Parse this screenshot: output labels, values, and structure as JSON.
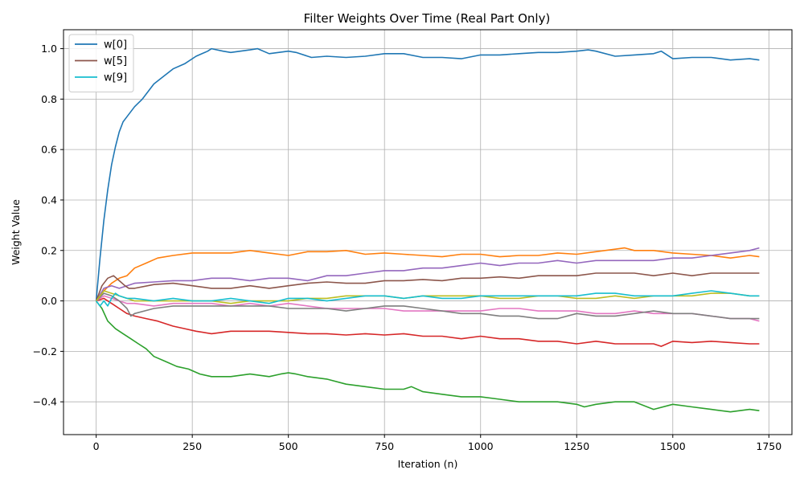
{
  "chart_data": {
    "type": "line",
    "title": "Filter Weights Over Time (Real Part Only)",
    "xlabel": "Iteration (n)",
    "ylabel": "Weight Value",
    "xlim": [
      -85,
      1810
    ],
    "ylim": [
      -0.53,
      1.075
    ],
    "xticks": [
      0,
      250,
      500,
      750,
      1000,
      1250,
      1500,
      1750
    ],
    "yticks": [
      -0.4,
      -0.2,
      0.0,
      0.2,
      0.4,
      0.6,
      0.8,
      1.0
    ],
    "xtick_labels": [
      "0",
      "250",
      "500",
      "750",
      "1000",
      "1250",
      "1500",
      "1750"
    ],
    "ytick_labels": [
      "−0.4",
      "−0.2",
      "0.0",
      "0.2",
      "0.4",
      "0.6",
      "0.8",
      "1.0"
    ],
    "grid": true,
    "legend": {
      "placement": "top-left",
      "entries": [
        "w[0]",
        "w[5]",
        "w[9]"
      ]
    },
    "series": [
      {
        "name": "w[0]",
        "color": "#1f77b4",
        "x": [
          0,
          10,
          20,
          30,
          40,
          50,
          60,
          70,
          80,
          100,
          120,
          150,
          175,
          200,
          230,
          260,
          290,
          300,
          330,
          350,
          400,
          420,
          450,
          500,
          520,
          560,
          600,
          650,
          700,
          750,
          800,
          850,
          900,
          950,
          1000,
          1050,
          1100,
          1150,
          1200,
          1250,
          1280,
          1300,
          1350,
          1400,
          1450,
          1470,
          1500,
          1550,
          1600,
          1650,
          1700,
          1725
        ],
        "y": [
          0.0,
          0.17,
          0.32,
          0.44,
          0.54,
          0.61,
          0.67,
          0.71,
          0.73,
          0.77,
          0.8,
          0.86,
          0.89,
          0.92,
          0.94,
          0.97,
          0.99,
          1.0,
          0.99,
          0.985,
          0.995,
          1.0,
          0.98,
          0.99,
          0.985,
          0.965,
          0.97,
          0.965,
          0.97,
          0.98,
          0.98,
          0.965,
          0.965,
          0.96,
          0.975,
          0.975,
          0.98,
          0.985,
          0.985,
          0.99,
          0.995,
          0.99,
          0.97,
          0.975,
          0.98,
          0.99,
          0.96,
          0.965,
          0.965,
          0.955,
          0.96,
          0.955
        ]
      },
      {
        "name": "",
        "color": "#ff7f0e",
        "x": [
          0,
          20,
          40,
          60,
          80,
          100,
          130,
          160,
          200,
          250,
          300,
          350,
          400,
          450,
          500,
          550,
          600,
          650,
          700,
          750,
          800,
          850,
          900,
          950,
          1000,
          1050,
          1100,
          1150,
          1200,
          1250,
          1300,
          1350,
          1375,
          1400,
          1450,
          1500,
          1550,
          1600,
          1650,
          1700,
          1725
        ],
        "y": [
          0.0,
          0.04,
          0.07,
          0.09,
          0.1,
          0.13,
          0.15,
          0.17,
          0.18,
          0.19,
          0.19,
          0.19,
          0.2,
          0.19,
          0.18,
          0.195,
          0.195,
          0.2,
          0.185,
          0.19,
          0.185,
          0.18,
          0.175,
          0.185,
          0.185,
          0.175,
          0.18,
          0.18,
          0.19,
          0.185,
          0.195,
          0.205,
          0.21,
          0.2,
          0.2,
          0.19,
          0.185,
          0.18,
          0.17,
          0.18,
          0.175
        ]
      },
      {
        "name": "",
        "color": "#2ca02c",
        "x": [
          0,
          15,
          30,
          50,
          70,
          90,
          110,
          130,
          150,
          180,
          210,
          240,
          270,
          300,
          350,
          400,
          450,
          480,
          500,
          520,
          550,
          600,
          650,
          700,
          750,
          800,
          820,
          850,
          900,
          950,
          1000,
          1050,
          1100,
          1150,
          1200,
          1250,
          1270,
          1300,
          1350,
          1400,
          1450,
          1500,
          1550,
          1600,
          1650,
          1700,
          1725
        ],
        "y": [
          0.0,
          -0.03,
          -0.08,
          -0.11,
          -0.13,
          -0.15,
          -0.17,
          -0.19,
          -0.22,
          -0.24,
          -0.26,
          -0.27,
          -0.29,
          -0.3,
          -0.3,
          -0.29,
          -0.3,
          -0.29,
          -0.285,
          -0.29,
          -0.3,
          -0.31,
          -0.33,
          -0.34,
          -0.35,
          -0.35,
          -0.34,
          -0.36,
          -0.37,
          -0.38,
          -0.38,
          -0.39,
          -0.4,
          -0.4,
          -0.4,
          -0.41,
          -0.42,
          -0.41,
          -0.4,
          -0.4,
          -0.43,
          -0.41,
          -0.42,
          -0.43,
          -0.44,
          -0.43,
          -0.435
        ]
      },
      {
        "name": "",
        "color": "#d62728",
        "x": [
          0,
          20,
          40,
          60,
          80,
          100,
          130,
          160,
          200,
          230,
          260,
          300,
          350,
          400,
          450,
          500,
          550,
          600,
          650,
          700,
          750,
          800,
          850,
          900,
          950,
          1000,
          1050,
          1100,
          1150,
          1200,
          1250,
          1300,
          1350,
          1400,
          1450,
          1470,
          1500,
          1550,
          1600,
          1650,
          1700,
          1725
        ],
        "y": [
          0.0,
          0.01,
          -0.01,
          -0.03,
          -0.05,
          -0.06,
          -0.07,
          -0.08,
          -0.1,
          -0.11,
          -0.12,
          -0.13,
          -0.12,
          -0.12,
          -0.12,
          -0.125,
          -0.13,
          -0.13,
          -0.135,
          -0.13,
          -0.135,
          -0.13,
          -0.14,
          -0.14,
          -0.15,
          -0.14,
          -0.15,
          -0.15,
          -0.16,
          -0.16,
          -0.17,
          -0.16,
          -0.17,
          -0.17,
          -0.17,
          -0.18,
          -0.16,
          -0.165,
          -0.16,
          -0.165,
          -0.17,
          -0.17
        ]
      },
      {
        "name": "",
        "color": "#9467bd",
        "x": [
          0,
          20,
          40,
          60,
          80,
          100,
          150,
          200,
          250,
          300,
          350,
          400,
          450,
          500,
          550,
          600,
          650,
          700,
          750,
          800,
          850,
          900,
          950,
          1000,
          1050,
          1100,
          1150,
          1200,
          1250,
          1300,
          1350,
          1400,
          1450,
          1500,
          1550,
          1600,
          1650,
          1700,
          1725
        ],
        "y": [
          0.0,
          0.05,
          0.06,
          0.05,
          0.06,
          0.07,
          0.075,
          0.08,
          0.08,
          0.09,
          0.09,
          0.08,
          0.09,
          0.09,
          0.08,
          0.1,
          0.1,
          0.11,
          0.12,
          0.12,
          0.13,
          0.13,
          0.14,
          0.15,
          0.14,
          0.15,
          0.15,
          0.16,
          0.15,
          0.16,
          0.16,
          0.16,
          0.16,
          0.17,
          0.17,
          0.18,
          0.19,
          0.2,
          0.21
        ]
      },
      {
        "name": "w[5]",
        "color": "#8c564b",
        "x": [
          0,
          15,
          30,
          45,
          60,
          75,
          85,
          100,
          150,
          200,
          250,
          300,
          350,
          400,
          450,
          500,
          550,
          600,
          650,
          700,
          750,
          800,
          850,
          900,
          950,
          1000,
          1050,
          1100,
          1150,
          1200,
          1250,
          1300,
          1350,
          1400,
          1450,
          1500,
          1550,
          1600,
          1650,
          1700,
          1725
        ],
        "y": [
          0.0,
          0.06,
          0.09,
          0.1,
          0.08,
          0.06,
          0.05,
          0.05,
          0.065,
          0.07,
          0.06,
          0.05,
          0.05,
          0.06,
          0.05,
          0.06,
          0.07,
          0.075,
          0.07,
          0.07,
          0.08,
          0.08,
          0.085,
          0.08,
          0.09,
          0.09,
          0.095,
          0.09,
          0.1,
          0.1,
          0.1,
          0.11,
          0.11,
          0.11,
          0.1,
          0.11,
          0.1,
          0.11,
          0.11,
          0.11,
          0.11
        ]
      },
      {
        "name": "",
        "color": "#e377c2",
        "x": [
          0,
          20,
          40,
          60,
          80,
          100,
          150,
          200,
          250,
          300,
          350,
          400,
          450,
          500,
          550,
          600,
          650,
          700,
          750,
          800,
          850,
          900,
          950,
          1000,
          1050,
          1100,
          1150,
          1200,
          1250,
          1300,
          1350,
          1400,
          1450,
          1500,
          1550,
          1600,
          1650,
          1700,
          1725
        ],
        "y": [
          0.0,
          0.02,
          0.01,
          0.0,
          -0.01,
          -0.01,
          -0.02,
          -0.01,
          -0.01,
          -0.01,
          -0.02,
          -0.01,
          -0.02,
          -0.01,
          -0.02,
          -0.03,
          -0.03,
          -0.03,
          -0.03,
          -0.04,
          -0.04,
          -0.04,
          -0.04,
          -0.04,
          -0.03,
          -0.03,
          -0.04,
          -0.04,
          -0.04,
          -0.05,
          -0.05,
          -0.04,
          -0.05,
          -0.05,
          -0.05,
          -0.06,
          -0.07,
          -0.07,
          -0.08
        ]
      },
      {
        "name": "",
        "color": "#7f7f7f",
        "x": [
          0,
          20,
          40,
          60,
          80,
          90,
          100,
          150,
          200,
          250,
          300,
          350,
          400,
          450,
          500,
          550,
          600,
          650,
          700,
          750,
          800,
          850,
          900,
          950,
          1000,
          1050,
          1100,
          1150,
          1200,
          1250,
          1300,
          1350,
          1400,
          1450,
          1500,
          1550,
          1600,
          1650,
          1700,
          1725
        ],
        "y": [
          0.0,
          0.03,
          0.02,
          0.0,
          -0.03,
          -0.06,
          -0.05,
          -0.03,
          -0.02,
          -0.02,
          -0.02,
          -0.02,
          -0.02,
          -0.02,
          -0.03,
          -0.03,
          -0.03,
          -0.04,
          -0.03,
          -0.02,
          -0.02,
          -0.03,
          -0.04,
          -0.05,
          -0.05,
          -0.06,
          -0.06,
          -0.07,
          -0.07,
          -0.05,
          -0.06,
          -0.06,
          -0.05,
          -0.04,
          -0.05,
          -0.05,
          -0.06,
          -0.07,
          -0.07,
          -0.07
        ]
      },
      {
        "name": "",
        "color": "#bcbd22",
        "x": [
          0,
          20,
          40,
          60,
          80,
          100,
          150,
          200,
          250,
          300,
          350,
          400,
          450,
          500,
          550,
          600,
          650,
          700,
          750,
          800,
          850,
          900,
          950,
          1000,
          1050,
          1100,
          1150,
          1200,
          1250,
          1300,
          1350,
          1400,
          1450,
          1500,
          1550,
          1600,
          1650,
          1700,
          1725
        ],
        "y": [
          0.0,
          0.04,
          0.03,
          0.02,
          0.01,
          0.0,
          0.0,
          0.0,
          0.0,
          0.0,
          -0.01,
          0.0,
          0.0,
          0.0,
          0.01,
          0.01,
          0.02,
          0.02,
          0.02,
          0.01,
          0.02,
          0.02,
          0.02,
          0.02,
          0.01,
          0.01,
          0.02,
          0.02,
          0.01,
          0.01,
          0.02,
          0.01,
          0.02,
          0.02,
          0.02,
          0.03,
          0.03,
          0.02,
          0.02
        ]
      },
      {
        "name": "w[9]",
        "color": "#17becf",
        "x": [
          0,
          10,
          20,
          30,
          40,
          50,
          60,
          80,
          100,
          150,
          200,
          250,
          300,
          350,
          400,
          450,
          500,
          550,
          600,
          650,
          700,
          750,
          800,
          850,
          900,
          950,
          1000,
          1050,
          1100,
          1150,
          1200,
          1250,
          1300,
          1350,
          1400,
          1450,
          1500,
          1550,
          1600,
          1650,
          1700,
          1725
        ],
        "y": [
          0.0,
          -0.02,
          0.0,
          -0.02,
          0.01,
          0.03,
          0.02,
          0.01,
          0.01,
          0.0,
          0.01,
          0.0,
          0.0,
          0.01,
          0.0,
          -0.01,
          0.01,
          0.01,
          0.0,
          0.01,
          0.02,
          0.02,
          0.01,
          0.02,
          0.01,
          0.01,
          0.02,
          0.02,
          0.02,
          0.02,
          0.02,
          0.02,
          0.03,
          0.03,
          0.02,
          0.02,
          0.02,
          0.03,
          0.04,
          0.03,
          0.02,
          0.02
        ]
      }
    ]
  }
}
